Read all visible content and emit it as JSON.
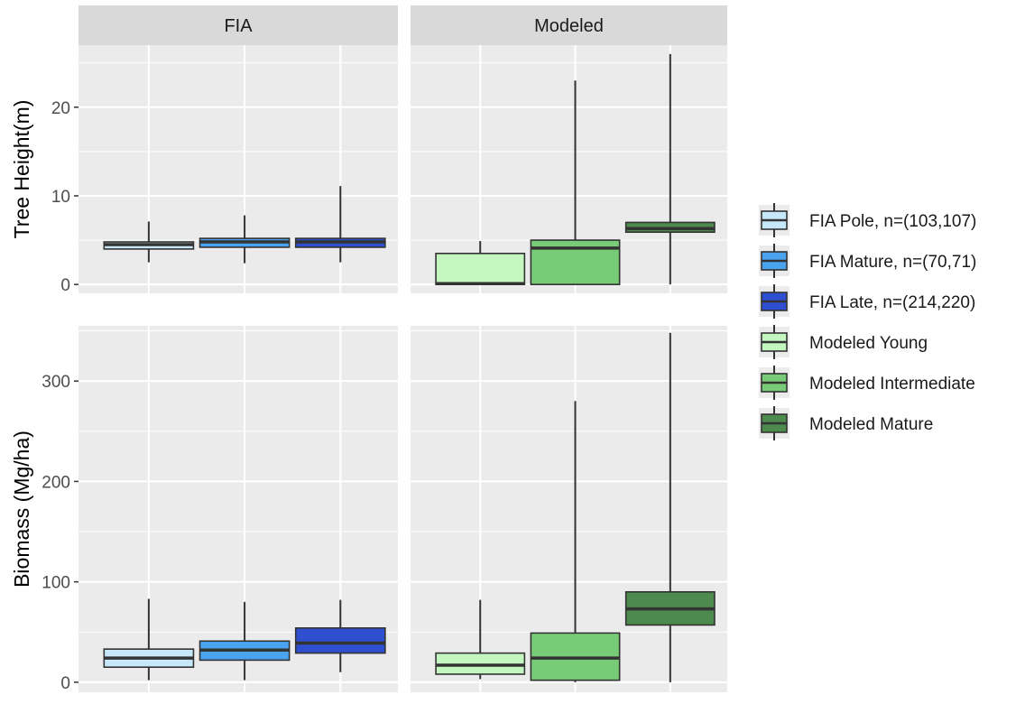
{
  "colors": {
    "panel_bg": "#ebebeb",
    "strip_bg": "#d9d9d9",
    "grid": "#ffffff",
    "box_outline": "#333333"
  },
  "chart_data": {
    "type": "box",
    "facets": {
      "columns": [
        "FIA",
        "Modeled"
      ],
      "rows": [
        "Tree Height(m)",
        "Biomass (Mg/ha)"
      ]
    },
    "legend": {
      "position": "right",
      "entries": [
        {
          "key": "fia_pole",
          "label": "FIA Pole, n=(103,107)",
          "color": "#c6e8fa"
        },
        {
          "key": "fia_mature",
          "label": "FIA Mature, n=(70,71)",
          "color": "#4aa3ee"
        },
        {
          "key": "fia_late",
          "label": "FIA Late, n=(214,220)",
          "color": "#2f4fd1"
        },
        {
          "key": "mod_young",
          "label": "Modeled Young",
          "color": "#c3f7bf"
        },
        {
          "key": "mod_inter",
          "label": "Modeled Intermediate",
          "color": "#79cc77"
        },
        {
          "key": "mod_mature",
          "label": "Modeled Mature",
          "color": "#4d8a4d"
        }
      ]
    },
    "rows": [
      {
        "ylabel": "Tree Height(m)",
        "ylim": [
          -1,
          27
        ],
        "ticks": [
          0,
          10,
          20
        ],
        "tick_labels": [
          "0",
          "10",
          "20"
        ],
        "minor_ticks": [
          5,
          15,
          25
        ],
        "panels": [
          {
            "facet": "FIA",
            "boxes": [
              {
                "key": "fia_pole",
                "min": 2.5,
                "q1": 4.0,
                "median": 4.5,
                "q3": 4.8,
                "max": 7.1
              },
              {
                "key": "fia_mature",
                "min": 2.4,
                "q1": 4.2,
                "median": 4.8,
                "q3": 5.2,
                "max": 7.8
              },
              {
                "key": "fia_late",
                "min": 2.5,
                "q1": 4.2,
                "median": 4.8,
                "q3": 5.2,
                "max": 11.1
              }
            ]
          },
          {
            "facet": "Modeled",
            "boxes": [
              {
                "key": "mod_young",
                "min": 0.0,
                "q1": 0.0,
                "median": 0.1,
                "q3": 3.5,
                "max": 4.9
              },
              {
                "key": "mod_inter",
                "min": 0.0,
                "q1": 0.0,
                "median": 4.1,
                "q3": 5.0,
                "max": 23.0
              },
              {
                "key": "mod_mature",
                "min": 0.0,
                "q1": 5.9,
                "median": 6.3,
                "q3": 7.0,
                "max": 26.0
              }
            ]
          }
        ]
      },
      {
        "ylabel": "Biomass (Mg/ha)",
        "ylim": [
          -10,
          355
        ],
        "ticks": [
          0,
          100,
          200,
          300
        ],
        "tick_labels": [
          "0",
          "100",
          "200",
          "300"
        ],
        "minor_ticks": [
          50,
          150,
          250,
          350
        ],
        "panels": [
          {
            "facet": "FIA",
            "boxes": [
              {
                "key": "fia_pole",
                "min": 2.0,
                "q1": 15.0,
                "median": 24.0,
                "q3": 33.0,
                "max": 83.0
              },
              {
                "key": "fia_mature",
                "min": 2.0,
                "q1": 22.0,
                "median": 32.0,
                "q3": 41.0,
                "max": 80.0
              },
              {
                "key": "fia_late",
                "min": 10.0,
                "q1": 29.0,
                "median": 39.0,
                "q3": 54.0,
                "max": 82.0
              }
            ]
          },
          {
            "facet": "Modeled",
            "boxes": [
              {
                "key": "mod_young",
                "min": 3.0,
                "q1": 8.0,
                "median": 17.0,
                "q3": 29.0,
                "max": 82.0
              },
              {
                "key": "mod_inter",
                "min": 0.0,
                "q1": 2.0,
                "median": 24.0,
                "q3": 49.0,
                "max": 280.0
              },
              {
                "key": "mod_mature",
                "min": 0.0,
                "q1": 57.0,
                "median": 73.0,
                "q3": 90.0,
                "max": 348.0
              }
            ]
          }
        ]
      }
    ]
  }
}
